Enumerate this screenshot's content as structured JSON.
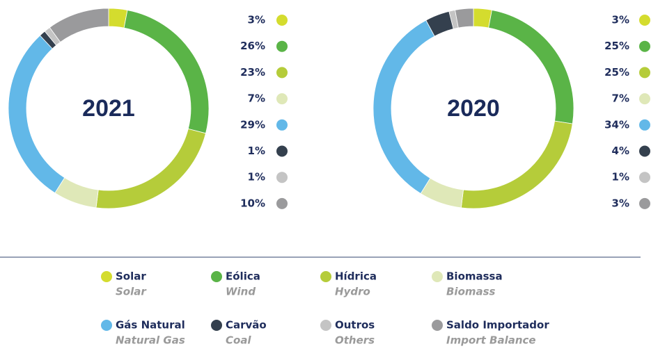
{
  "chart_data": [
    {
      "type": "pie",
      "title": "2021",
      "values": [
        3,
        26,
        23,
        7,
        29,
        1,
        1,
        10
      ],
      "value_labels": [
        "3%",
        "26%",
        "23%",
        "7%",
        "29%",
        "1%",
        "1%",
        "10%"
      ]
    },
    {
      "type": "pie",
      "title": "2020",
      "values": [
        3,
        25,
        25,
        7,
        34,
        4,
        1,
        3
      ],
      "value_labels": [
        "3%",
        "25%",
        "25%",
        "7%",
        "34%",
        "4%",
        "1%",
        "3%"
      ]
    }
  ],
  "legend": [
    {
      "name": "Solar",
      "translation": "Solar",
      "color": "#d4dc2e"
    },
    {
      "name": "Eólica",
      "translation": "Wind",
      "color": "#5ab447"
    },
    {
      "name": "Hídrica",
      "translation": "Hydro",
      "color": "#b5cc3a"
    },
    {
      "name": "Biomassa",
      "translation": "Biomass",
      "color": "#dfe8b8"
    },
    {
      "name": "Gás Natural",
      "translation": "Natural Gas",
      "color": "#62b8e8"
    },
    {
      "name": "Carvão",
      "translation": "Coal",
      "color": "#34404e"
    },
    {
      "name": "Outros",
      "translation": "Others",
      "color": "#c4c4c4"
    },
    {
      "name": "Saldo Importador",
      "translation": "Import Balance",
      "color": "#9a9a9c"
    }
  ]
}
